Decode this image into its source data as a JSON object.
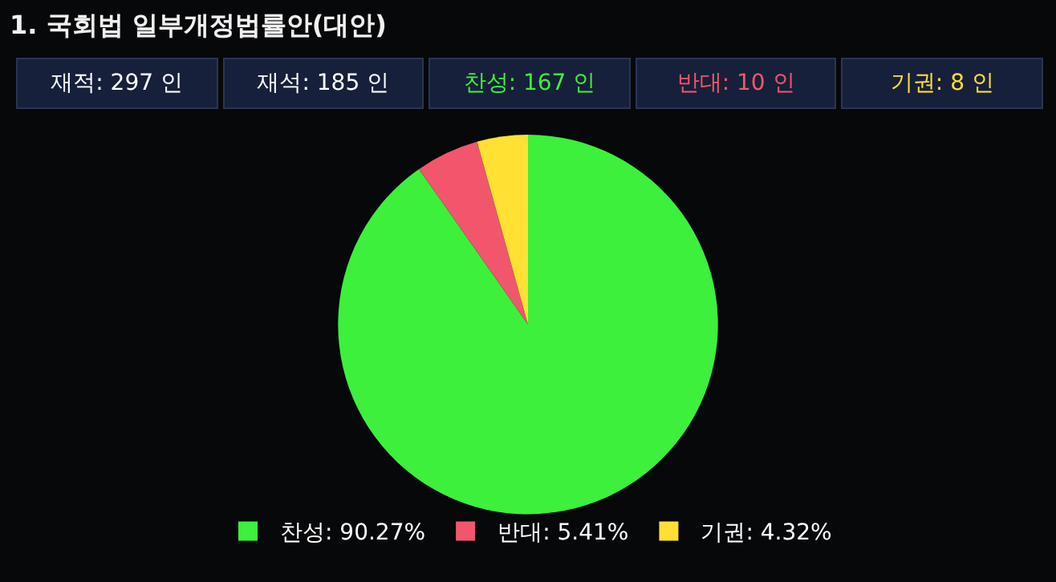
{
  "chart_data": {
    "type": "pie",
    "title": "1. 국회법 일부개정법률안(대안)",
    "annotations": [
      "재적: 297 인",
      "재석: 185 인",
      "찬성: 167 인",
      "반대: 10 인",
      "기권: 8 인"
    ],
    "categories": [
      "찬성: 90.27%",
      "반대: 5.41%",
      "기권: 4.32%"
    ],
    "values": [
      90.27,
      5.41,
      4.32
    ],
    "colors": [
      "#3cf03c",
      "#f2566c",
      "#ffe033"
    ],
    "legend": "bottom"
  }
}
